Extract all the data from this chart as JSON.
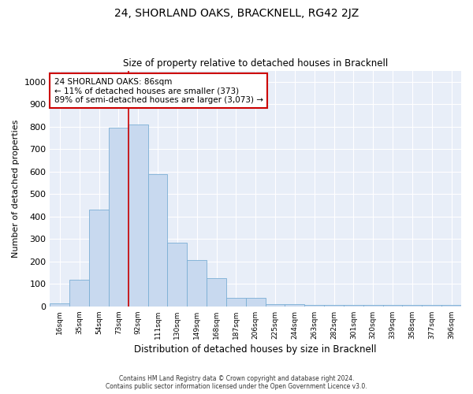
{
  "title": "24, SHORLAND OAKS, BRACKNELL, RG42 2JZ",
  "subtitle": "Size of property relative to detached houses in Bracknell",
  "xlabel": "Distribution of detached houses by size in Bracknell",
  "ylabel": "Number of detached properties",
  "bar_labels": [
    "16sqm",
    "35sqm",
    "54sqm",
    "73sqm",
    "92sqm",
    "111sqm",
    "130sqm",
    "149sqm",
    "168sqm",
    "187sqm",
    "206sqm",
    "225sqm",
    "244sqm",
    "263sqm",
    "282sqm",
    "301sqm",
    "320sqm",
    "339sqm",
    "358sqm",
    "377sqm",
    "396sqm"
  ],
  "bar_values": [
    15,
    120,
    430,
    795,
    810,
    590,
    285,
    205,
    125,
    37,
    37,
    10,
    10,
    5,
    5,
    5,
    5,
    5,
    5,
    5,
    7
  ],
  "bar_color": "#c8d9ef",
  "bar_edge_color": "#7aaed4",
  "annotation_text": "24 SHORLAND OAKS: 86sqm\n← 11% of detached houses are smaller (373)\n89% of semi-detached houses are larger (3,073) →",
  "annotation_box_color": "#ffffff",
  "annotation_box_edge": "#cc0000",
  "property_line_color": "#cc0000",
  "ylim": [
    0,
    1050
  ],
  "yticks": [
    0,
    100,
    200,
    300,
    400,
    500,
    600,
    700,
    800,
    900,
    1000
  ],
  "background_color": "#e8eef8",
  "grid_color": "#ffffff",
  "footer_line1": "Contains HM Land Registry data © Crown copyright and database right 2024.",
  "footer_line2": "Contains public sector information licensed under the Open Government Licence v3.0."
}
